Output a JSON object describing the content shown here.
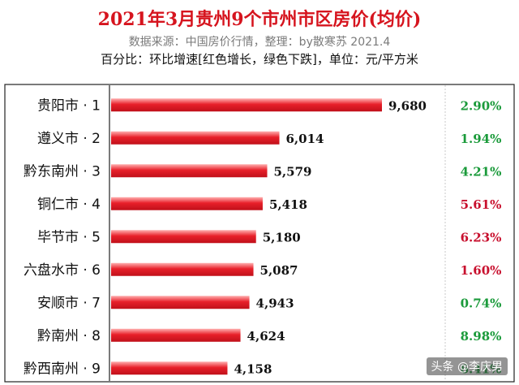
{
  "header": {
    "title": "2021年3月贵州9个市州市区房价(均价)",
    "subtitle": "数据来源：中国房价行情，整理：by散寒苏 2021.4",
    "note": "百分比：环比增速[红色增长，绿色下跌]，单位：元/平方米"
  },
  "watermark": "头条 @李庆男",
  "colors": {
    "bar": "#e8202a",
    "increase": "#c8102e",
    "decrease": "#1a9a3a"
  },
  "chart_data": {
    "type": "bar",
    "orientation": "horizontal",
    "categories": [
      "贵阳市 · 1",
      "遵义市 · 2",
      "黔东南州 · 3",
      "铜仁市 · 4",
      "毕节市 · 5",
      "六盘水市 · 6",
      "安顺市 · 7",
      "黔南州 · 8",
      "黔西南州 · 9"
    ],
    "values": [
      9680,
      6014,
      5579,
      5418,
      5180,
      5087,
      4943,
      4624,
      4158
    ],
    "value_labels": [
      "9,680",
      "6,014",
      "5,579",
      "5,418",
      "5,180",
      "5,087",
      "4,943",
      "4,624",
      "4,158"
    ],
    "changes": [
      "2.90%",
      "1.94%",
      "4.21%",
      "5.61%",
      "6.23%",
      "1.60%",
      "0.74%",
      "8.98%",
      "6.41%"
    ],
    "change_direction": [
      "decrease",
      "decrease",
      "decrease",
      "increase",
      "increase",
      "increase",
      "decrease",
      "decrease",
      "decrease"
    ],
    "xlim": [
      0,
      9680
    ],
    "grid": false,
    "legend": "none"
  }
}
